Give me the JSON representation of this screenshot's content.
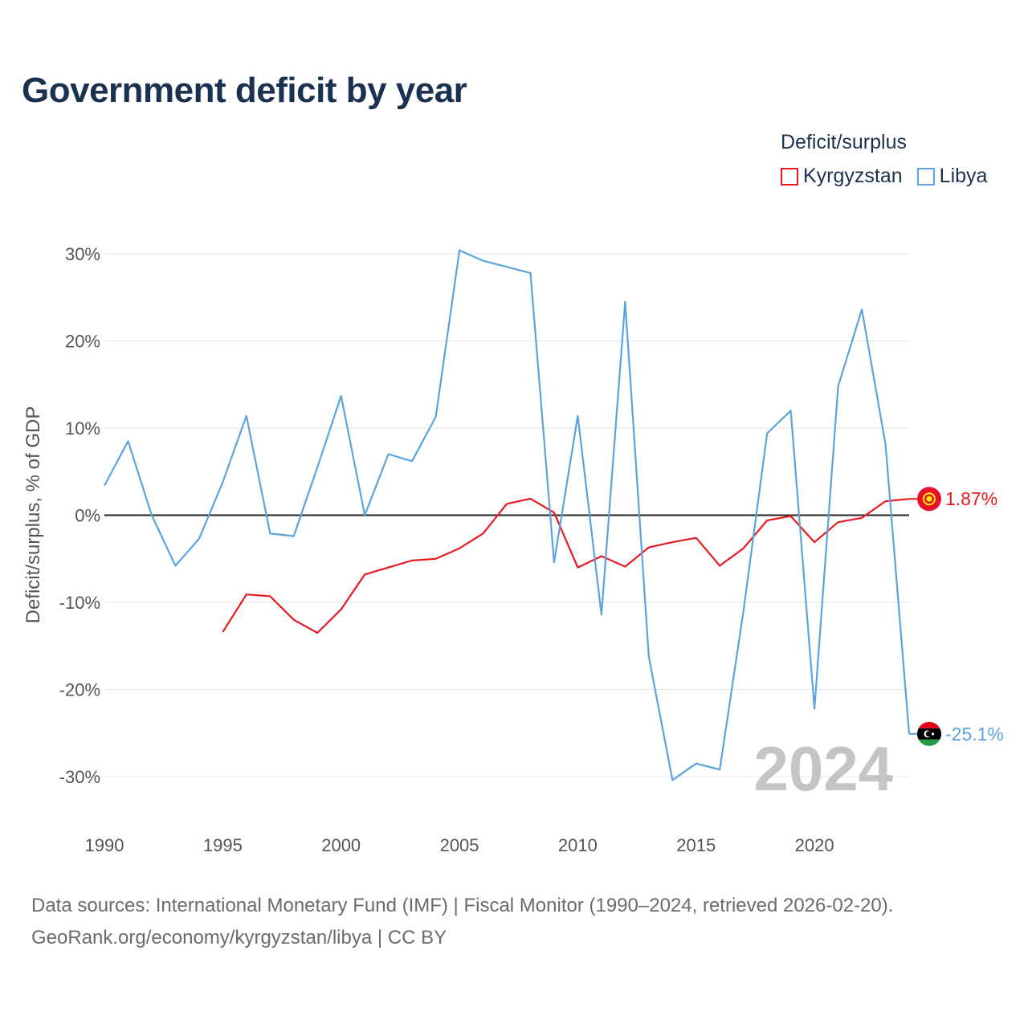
{
  "title": "Government deficit by year",
  "legend": {
    "title": "Deficit/surplus",
    "items": [
      {
        "name": "Kyrgyzstan",
        "color": "#e8191f"
      },
      {
        "name": "Libya",
        "color": "#5aa3e0"
      }
    ]
  },
  "year_watermark": "2024",
  "source": {
    "line1": "Data sources: International Monetary Fund (IMF) | Fiscal Monitor (1990–2024, retrieved 2026-02-20).",
    "line2": "GeoRank.org/economy/kyrgyzstan/libya | CC BY"
  },
  "chart_data": {
    "type": "line",
    "title": "Government deficit by year",
    "xlabel": "",
    "ylabel": "Deficit/surplus, % of GDP",
    "xlim": [
      1990,
      2024
    ],
    "ylim": [
      -35,
      33
    ],
    "x_ticks": [
      1990,
      1995,
      2000,
      2005,
      2010,
      2015,
      2020
    ],
    "y_ticks": [
      30,
      20,
      10,
      0,
      -10,
      -20,
      -30
    ],
    "y_tick_labels": [
      "30%",
      "20%",
      "10%",
      "0%",
      "-10%",
      "-20%",
      "-30%"
    ],
    "zero_line": true,
    "grid": true,
    "series": [
      {
        "name": "Kyrgyzstan",
        "color": "#e8191f",
        "end_label": "1.87%",
        "points": [
          [
            1995,
            -13.4
          ],
          [
            1996,
            -9.1
          ],
          [
            1997,
            -9.3
          ],
          [
            1998,
            -12.0
          ],
          [
            1999,
            -13.5
          ],
          [
            2000,
            -10.8
          ],
          [
            2001,
            -6.8
          ],
          [
            2002,
            -6.0
          ],
          [
            2003,
            -5.2
          ],
          [
            2004,
            -5.0
          ],
          [
            2005,
            -3.8
          ],
          [
            2006,
            -2.1
          ],
          [
            2007,
            1.3
          ],
          [
            2008,
            1.9
          ],
          [
            2009,
            0.3
          ],
          [
            2010,
            -6.0
          ],
          [
            2011,
            -4.7
          ],
          [
            2012,
            -5.9
          ],
          [
            2013,
            -3.7
          ],
          [
            2014,
            -3.1
          ],
          [
            2015,
            -2.6
          ],
          [
            2016,
            -5.8
          ],
          [
            2017,
            -3.8
          ],
          [
            2018,
            -0.6
          ],
          [
            2019,
            -0.1
          ],
          [
            2020,
            -3.1
          ],
          [
            2021,
            -0.8
          ],
          [
            2022,
            -0.3
          ],
          [
            2023,
            1.6
          ],
          [
            2024,
            1.87
          ]
        ]
      },
      {
        "name": "Libya",
        "color": "#5aa3e0",
        "end_label": "-25.1%",
        "points": [
          [
            1990,
            3.4
          ],
          [
            1991,
            8.5
          ],
          [
            1992,
            0.0
          ],
          [
            1993,
            -5.8
          ],
          [
            1994,
            -2.7
          ],
          [
            1995,
            3.8
          ],
          [
            1996,
            11.4
          ],
          [
            1997,
            -2.1
          ],
          [
            1998,
            -2.4
          ],
          [
            1999,
            5.5
          ],
          [
            2000,
            13.7
          ],
          [
            2001,
            0.0
          ],
          [
            2002,
            7.0
          ],
          [
            2003,
            6.2
          ],
          [
            2004,
            11.3
          ],
          [
            2005,
            30.4
          ],
          [
            2006,
            29.2
          ],
          [
            2007,
            28.5
          ],
          [
            2008,
            27.8
          ],
          [
            2009,
            -5.4
          ],
          [
            2010,
            11.4
          ],
          [
            2011,
            -11.4
          ],
          [
            2012,
            24.5
          ],
          [
            2013,
            -16.2
          ],
          [
            2014,
            -30.4
          ],
          [
            2015,
            -28.5
          ],
          [
            2016,
            -29.2
          ],
          [
            2017,
            -11.0
          ],
          [
            2018,
            9.4
          ],
          [
            2019,
            12.0
          ],
          [
            2020,
            -22.2
          ],
          [
            2021,
            14.8
          ],
          [
            2022,
            23.6
          ],
          [
            2023,
            8.2
          ],
          [
            2024,
            -25.1
          ]
        ]
      }
    ]
  }
}
